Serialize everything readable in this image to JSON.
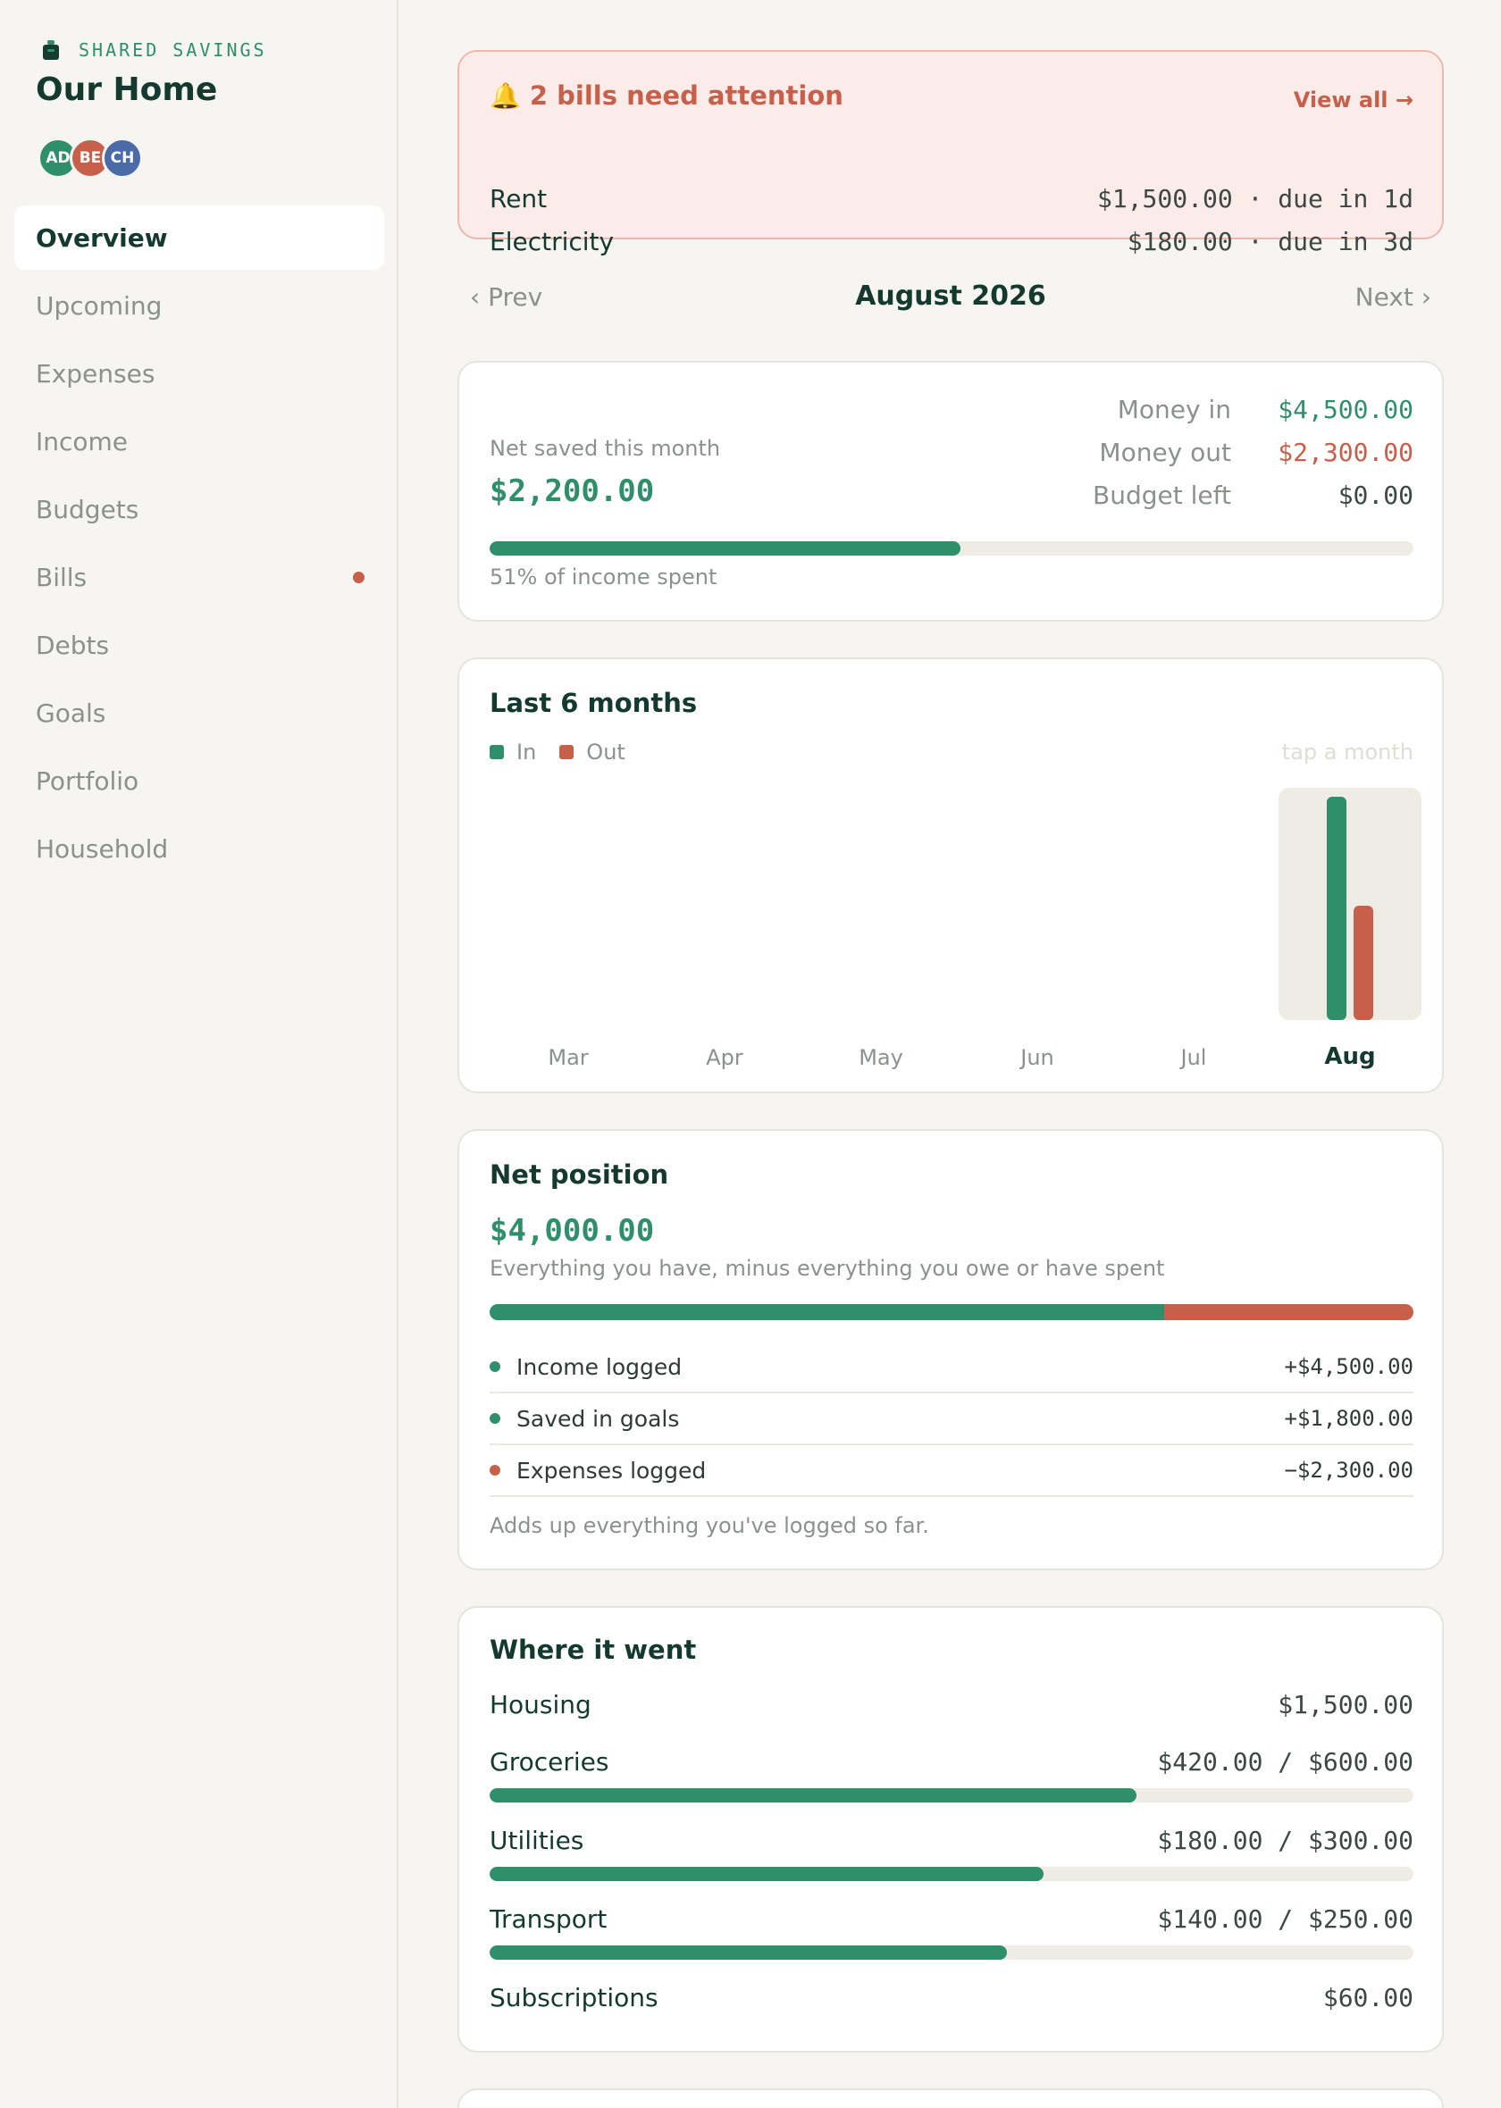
{
  "sidebar": {
    "brand_label": "SHARED SAVINGS",
    "title": "Our Home",
    "avatars": [
      {
        "initials": "AD",
        "color": "#2e8f6a"
      },
      {
        "initials": "BE",
        "color": "#c75f4a"
      },
      {
        "initials": "CH",
        "color": "#4b6aa8"
      }
    ],
    "nav": [
      {
        "label": "Overview",
        "active": true,
        "badge": false
      },
      {
        "label": "Upcoming",
        "active": false,
        "badge": false
      },
      {
        "label": "Expenses",
        "active": false,
        "badge": false
      },
      {
        "label": "Income",
        "active": false,
        "badge": false
      },
      {
        "label": "Budgets",
        "active": false,
        "badge": false
      },
      {
        "label": "Bills",
        "active": false,
        "badge": true
      },
      {
        "label": "Debts",
        "active": false,
        "badge": false
      },
      {
        "label": "Goals",
        "active": false,
        "badge": false
      },
      {
        "label": "Portfolio",
        "active": false,
        "badge": false
      },
      {
        "label": "Household",
        "active": false,
        "badge": false
      }
    ]
  },
  "alert": {
    "icon": "bell-icon",
    "title": "2 bills need attention",
    "view_all": "View all →",
    "bills": [
      {
        "name": "Rent",
        "detail": "$1,500.00 · due in 1d"
      },
      {
        "name": "Electricity",
        "detail": "$180.00 · due in 3d"
      }
    ]
  },
  "month_nav": {
    "prev": "‹ Prev",
    "current": "August 2026",
    "next": "Next ›"
  },
  "summary": {
    "net_label": "Net saved this month",
    "net_value": "$2,200.00",
    "stats": [
      {
        "label": "Money in",
        "value": "$4,500.00",
        "color": "#2e8f6a"
      },
      {
        "label": "Money out",
        "value": "$2,300.00",
        "color": "#c75f4a"
      },
      {
        "label": "Budget left",
        "value": "$0.00",
        "color": "#3d4743"
      }
    ],
    "spent_fraction": 0.51,
    "spent_caption": "51% of income spent"
  },
  "trend": {
    "title": "Last 6 months",
    "legend_in": "In",
    "legend_out": "Out",
    "hint": "tap a month",
    "selected": "Aug"
  },
  "chart_data": {
    "type": "bar",
    "categories": [
      "Mar",
      "Apr",
      "May",
      "Jun",
      "Jul",
      "Aug"
    ],
    "series": [
      {
        "name": "In",
        "color": "#2e8f6a",
        "values": [
          0,
          0,
          0,
          0,
          0,
          4500
        ]
      },
      {
        "name": "Out",
        "color": "#c75f4a",
        "values": [
          0,
          0,
          0,
          0,
          0,
          2300
        ]
      }
    ],
    "ylim": [
      0,
      4500
    ]
  },
  "net_position": {
    "title": "Net position",
    "value": "$4,000.00",
    "caption": "Everything you have, minus everything you owe or have spent",
    "positive_fraction": 0.73,
    "rows": [
      {
        "label": "Income logged",
        "amount": "+$4,500.00",
        "color": "#2e8f6a"
      },
      {
        "label": "Saved in goals",
        "amount": "+$1,800.00",
        "color": "#2e8f6a"
      },
      {
        "label": "Expenses logged",
        "amount": "−$2,300.00",
        "color": "#c75f4a"
      }
    ],
    "footnote": "Adds up everything you've logged so far."
  },
  "where": {
    "title": "Where it went",
    "categories": [
      {
        "name": "Housing",
        "amount": "$1,500.00",
        "fraction": null
      },
      {
        "name": "Groceries",
        "amount": "$420.00 / $600.00",
        "fraction": 0.7
      },
      {
        "name": "Utilities",
        "amount": "$180.00 / $300.00",
        "fraction": 0.6
      },
      {
        "name": "Transport",
        "amount": "$140.00 / $250.00",
        "fraction": 0.56
      },
      {
        "name": "Subscriptions",
        "amount": "$60.00",
        "fraction": null
      }
    ]
  }
}
